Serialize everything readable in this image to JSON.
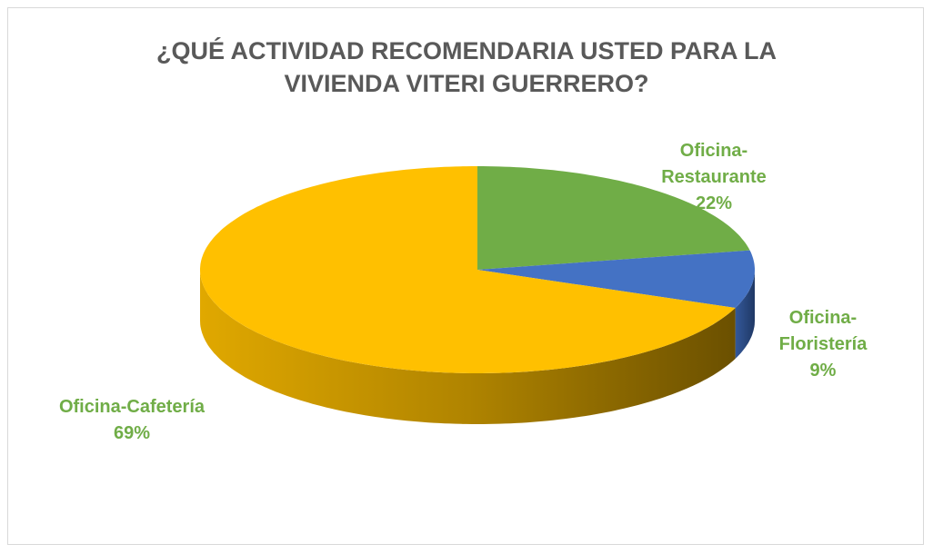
{
  "chart_data": {
    "type": "pie",
    "title": "¿QUÉ ACTIVIDAD RECOMENDARIA USTED PARA LA VIVIENDA VITERI GUERRERO?",
    "categories": [
      "Oficina-Restaurante",
      "Oficina-Floristería",
      "Oficina-Cafetería"
    ],
    "values": [
      22,
      9,
      69
    ],
    "value_labels": [
      "22%",
      "9%",
      "69%"
    ],
    "colors": [
      "#70ad47",
      "#4472c4",
      "#ffc000"
    ]
  }
}
